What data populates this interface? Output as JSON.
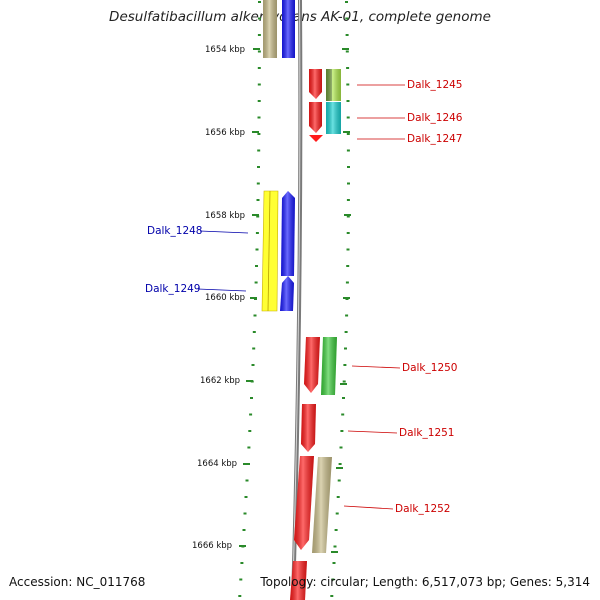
{
  "title": "Desulfatibacillum alkenivorans AK-01, complete genome",
  "footer": {
    "accession": "Accession: NC_011768",
    "topology": "Topology: circular; Length: 6,517,073 bp; Genes: 5,314"
  },
  "colors": {
    "backbone": "#7a7a7a",
    "tick": "#2a8a2a",
    "plus_strand_label": "#cc0000",
    "minus_strand_label": "#0000aa",
    "red": "#ff1a1a",
    "blue": "#1a1aff",
    "yellow": "#ffff33",
    "khaki": "#c8bc88",
    "green": "#3ccc3c",
    "cyan": "#1ad2d2",
    "lime": "#aee84a",
    "olive": "#6f9a3a"
  },
  "scale_labels": [
    "1654 kbp",
    "1656 kbp",
    "1658 kbp",
    "1660 kbp",
    "1662 kbp",
    "1664 kbp",
    "1666 kbp"
  ],
  "gene_labels": [
    {
      "id": "Dalk_1245",
      "strand": "plus"
    },
    {
      "id": "Dalk_1246",
      "strand": "plus"
    },
    {
      "id": "Dalk_1247",
      "strand": "plus"
    },
    {
      "id": "Dalk_1248",
      "strand": "minus"
    },
    {
      "id": "Dalk_1249",
      "strand": "minus"
    },
    {
      "id": "Dalk_1250",
      "strand": "plus"
    },
    {
      "id": "Dalk_1251",
      "strand": "plus"
    },
    {
      "id": "Dalk_1252",
      "strand": "plus"
    }
  ]
}
